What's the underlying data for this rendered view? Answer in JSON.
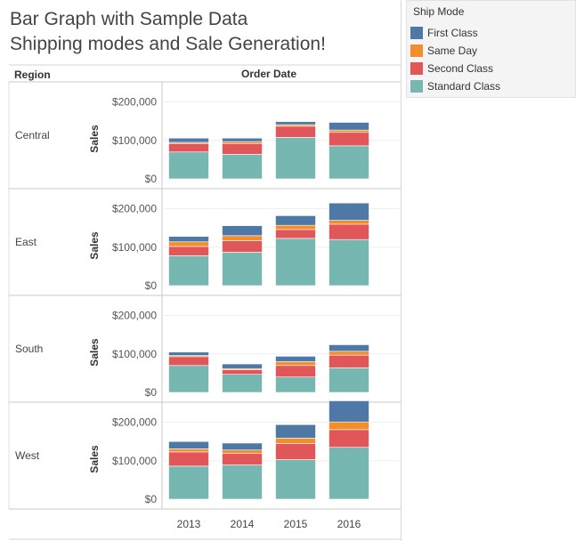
{
  "title_line1": "Bar Graph with Sample Data",
  "title_line2": "Shipping modes and Sale Generation!",
  "legend": {
    "title": "Ship Mode",
    "items": [
      {
        "label": "First Class",
        "color": "#4e79a7"
      },
      {
        "label": "Same Day",
        "color": "#f28e2b"
      },
      {
        "label": "Second Class",
        "color": "#e15759"
      },
      {
        "label": "Standard Class",
        "color": "#76b7b2"
      }
    ]
  },
  "chart_data": {
    "type": "bar",
    "stacked": true,
    "row_header": "Region",
    "column_header": "Order Date",
    "ylabel": "Sales",
    "y_ticks": [
      "$0",
      "$100,000",
      "$200,000"
    ],
    "ylim": [
      0,
      220000
    ],
    "categories": [
      "2013",
      "2014",
      "2015",
      "2016"
    ],
    "panels": [
      {
        "region": "Central",
        "series": [
          {
            "name": "Standard Class",
            "values": [
              70000,
              64000,
              108000,
              86000
            ]
          },
          {
            "name": "Second Class",
            "values": [
              22000,
              28000,
              29000,
              35000
            ]
          },
          {
            "name": "Same Day",
            "values": [
              3000,
              5000,
              4000,
              6000
            ]
          },
          {
            "name": "First Class",
            "values": [
              11000,
              9000,
              8000,
              20000
            ]
          }
        ]
      },
      {
        "region": "East",
        "series": [
          {
            "name": "Standard Class",
            "values": [
              78000,
              87000,
              123000,
              120000
            ]
          },
          {
            "name": "Second Class",
            "values": [
              24000,
              30000,
              23000,
              40000
            ]
          },
          {
            "name": "Same Day",
            "values": [
              12000,
              13000,
              11000,
              10000
            ]
          },
          {
            "name": "First Class",
            "values": [
              14000,
              26000,
              25000,
              45000
            ]
          }
        ]
      },
      {
        "region": "South",
        "series": [
          {
            "name": "Standard Class",
            "values": [
              70000,
              47000,
              40000,
              64000
            ]
          },
          {
            "name": "Second Class",
            "values": [
              23000,
              12000,
              30000,
              33000
            ]
          },
          {
            "name": "Same Day",
            "values": [
              3000,
              3000,
              10000,
              10000
            ]
          },
          {
            "name": "First Class",
            "values": [
              9000,
              12000,
              14000,
              17000
            ]
          }
        ]
      },
      {
        "region": "West",
        "series": [
          {
            "name": "Standard Class",
            "values": [
              86000,
              89000,
              103000,
              135000
            ]
          },
          {
            "name": "Second Class",
            "values": [
              37000,
              30000,
              42000,
              46000
            ]
          },
          {
            "name": "Same Day",
            "values": [
              8000,
              9000,
              14000,
              20000
            ]
          },
          {
            "name": "First Class",
            "values": [
              19000,
              18000,
              35000,
              55000
            ]
          }
        ]
      }
    ]
  }
}
